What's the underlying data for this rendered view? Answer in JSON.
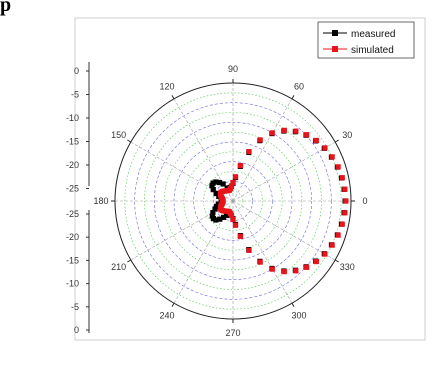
{
  "top_fragment": "p",
  "chart_data": {
    "type": "polar",
    "angle_unit": "degrees",
    "angle_ticks": [
      "0",
      "30",
      "60",
      "90",
      "120",
      "150",
      "180",
      "210",
      "240",
      "270",
      "300",
      "330"
    ],
    "radial_range": [
      -30,
      0
    ],
    "radial_ticks_upper": [
      "0",
      "-5",
      "-10",
      "-15",
      "-20",
      "-25"
    ],
    "radial_ticks_lower": [
      "-25",
      "-20",
      "-15",
      "-10",
      "-5",
      "0"
    ],
    "grid": true,
    "legend_position": "top-right",
    "colors": {
      "measured": "#000000",
      "simulated": "#e8141c",
      "grid_major": "#6a6adb",
      "grid_minor": "#4cc24c"
    },
    "series": [
      {
        "name": "measured",
        "angles": [
          0,
          6,
          12,
          18,
          24,
          30,
          36,
          42,
          48,
          54,
          60,
          66,
          72,
          78,
          84,
          90,
          96,
          102,
          108,
          114,
          120,
          126,
          132,
          138,
          144,
          150,
          156,
          162,
          168,
          174,
          180,
          186,
          192,
          198,
          204,
          210,
          216,
          222,
          228,
          234,
          240,
          246,
          252,
          258,
          264,
          270,
          276,
          282,
          288,
          294,
          300,
          306,
          312,
          318,
          324,
          330,
          336,
          342,
          348,
          354
        ],
        "values": [
          -1.5,
          -1.6,
          -1.8,
          -2.1,
          -2.6,
          -3.2,
          -4,
          -5,
          -6.3,
          -8,
          -10.2,
          -13.2,
          -17,
          -21,
          -24,
          -25.5,
          -26.2,
          -26.5,
          -26.8,
          -26.4,
          -25,
          -24.2,
          -23.5,
          -23.2,
          -23.4,
          -24.2,
          -25.3,
          -26.2,
          -26.9,
          -27.3,
          -27.2,
          -27,
          -26.2,
          -25.6,
          -25,
          -24.1,
          -23.5,
          -23.3,
          -23.5,
          -24.3,
          -25.2,
          -26,
          -26.5,
          -26.6,
          -26.3,
          -25.5,
          -24,
          -21,
          -17,
          -13.2,
          -10.2,
          -8,
          -6.3,
          -5,
          -4,
          -3.2,
          -2.6,
          -2.1,
          -1.8,
          -1.6
        ]
      },
      {
        "name": "simulated",
        "angles": [
          0,
          6,
          12,
          18,
          24,
          30,
          36,
          42,
          48,
          54,
          60,
          66,
          72,
          78,
          84,
          90,
          96,
          102,
          108,
          114,
          120,
          126,
          132,
          138,
          144,
          150,
          156,
          162,
          168,
          174,
          180,
          186,
          192,
          198,
          204,
          210,
          216,
          222,
          228,
          234,
          240,
          246,
          252,
          258,
          264,
          270,
          276,
          282,
          288,
          294,
          300,
          306,
          312,
          318,
          324,
          330,
          336,
          342,
          348,
          354
        ],
        "values": [
          -1.3,
          -1.4,
          -1.6,
          -1.9,
          -2.4,
          -3,
          -3.8,
          -4.8,
          -6.1,
          -7.8,
          -10,
          -13,
          -16.8,
          -20.8,
          -23.8,
          -25.3,
          -26.3,
          -26.8,
          -27.1,
          -27.1,
          -27,
          -26.8,
          -26.6,
          -26.4,
          -26.2,
          -26.3,
          -26.6,
          -26.9,
          -27.2,
          -27.4,
          -27.5,
          -27.4,
          -27.2,
          -26.9,
          -26.6,
          -26.3,
          -26.2,
          -26.4,
          -26.6,
          -26.8,
          -27,
          -27.1,
          -27.1,
          -26.8,
          -26.3,
          -25.3,
          -23.8,
          -20.8,
          -16.8,
          -13,
          -10,
          -7.8,
          -6.1,
          -4.8,
          -3.8,
          -3,
          -2.4,
          -1.9,
          -1.6,
          -1.4
        ]
      }
    ]
  }
}
